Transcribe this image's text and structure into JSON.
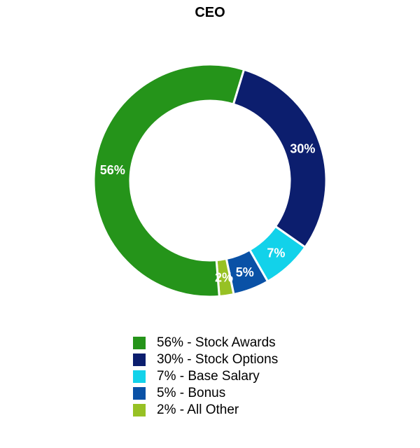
{
  "chart_data": {
    "type": "pie",
    "title": "CEO",
    "donut": true,
    "categories": [
      "Stock Awards",
      "Stock Options",
      "Base Salary",
      "Bonus",
      "All Other"
    ],
    "values": [
      56,
      30,
      7,
      5,
      2
    ],
    "data_labels": [
      "56%",
      "30%",
      "7%",
      "5%",
      "2%"
    ],
    "colors": [
      "#25941a",
      "#0c1e6e",
      "#12d2ea",
      "#0a51a6",
      "#97c124"
    ],
    "legend": {
      "position": "bottom",
      "entries": [
        "56% - Stock Awards",
        "30% - Stock Options",
        "7% - Base Salary",
        "5% - Bonus",
        "2% - All Other"
      ]
    },
    "segment_order": "clockwise, starting after 'All Other' near bottom-center: Stock Options, Base Salary, Bonus, All Other, then Stock Awards"
  }
}
